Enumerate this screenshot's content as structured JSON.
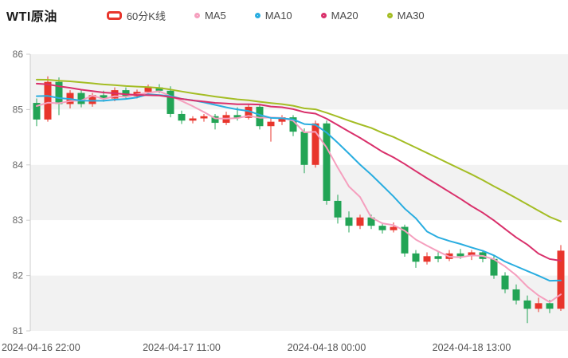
{
  "header": {
    "title": "WTI原油",
    "legend": [
      {
        "id": "kline",
        "label": "60分K线",
        "color": "#e8352c",
        "type": "kline"
      },
      {
        "id": "ma5",
        "label": "MA5",
        "color": "#f59fbe",
        "type": "line"
      },
      {
        "id": "ma10",
        "label": "MA10",
        "color": "#29ade0",
        "type": "line"
      },
      {
        "id": "ma20",
        "label": "MA20",
        "color": "#d9306b",
        "type": "line"
      },
      {
        "id": "ma30",
        "label": "MA30",
        "color": "#a4bd24",
        "type": "line"
      }
    ]
  },
  "chart_data": {
    "type": "candlestick",
    "title": "WTI原油",
    "interval_label": "60分K线",
    "ylim": [
      81,
      86
    ],
    "y_ticks": [
      86,
      85,
      84,
      83,
      82,
      81
    ],
    "x_tick_labels": [
      "2024-04-16 22:00",
      "2024-04-17 11:00",
      "2024-04-18 00:00",
      "2024-04-18 13:00"
    ],
    "x_tick_indices": [
      0,
      13,
      26,
      39
    ],
    "up_color": "#e8352c",
    "down_color": "#22a455",
    "band_colors": [
      "#f2f2f2",
      "#ffffff"
    ],
    "axis_color": "#cccccc",
    "tick_text_color": "#666666",
    "x_text_color": "#555555",
    "ma_series": [
      {
        "name": "MA5",
        "window": 5,
        "color": "#f59fbe"
      },
      {
        "name": "MA10",
        "window": 10,
        "color": "#29ade0"
      },
      {
        "name": "MA20",
        "window": 20,
        "color": "#d9306b"
      },
      {
        "name": "MA30",
        "window": 30,
        "color": "#a4bd24"
      }
    ],
    "seed_closes": [
      85.5,
      85.55,
      85.6,
      85.65,
      85.7,
      85.75,
      85.8,
      85.75,
      85.7,
      85.65,
      85.7,
      85.75,
      85.8,
      85.85,
      85.8,
      85.75,
      85.7,
      85.65,
      85.6,
      85.55,
      85.5,
      85.45,
      85.5,
      85.45,
      85.4,
      85.3,
      85.2,
      85.15,
      85.1,
      85.05
    ],
    "candles": [
      [
        85.12,
        85.2,
        84.7,
        84.82
      ],
      [
        84.82,
        85.6,
        84.78,
        85.5
      ],
      [
        85.5,
        85.58,
        84.9,
        85.1
      ],
      [
        85.1,
        85.35,
        85.02,
        85.3
      ],
      [
        85.3,
        85.36,
        85.04,
        85.1
      ],
      [
        85.1,
        85.3,
        85.05,
        85.26
      ],
      [
        85.26,
        85.34,
        85.14,
        85.2
      ],
      [
        85.2,
        85.4,
        85.15,
        85.35
      ],
      [
        85.35,
        85.4,
        85.18,
        85.24
      ],
      [
        85.24,
        85.36,
        85.2,
        85.32
      ],
      [
        85.32,
        85.45,
        85.26,
        85.4
      ],
      [
        85.4,
        85.46,
        85.3,
        85.34
      ],
      [
        85.34,
        85.42,
        84.86,
        84.92
      ],
      [
        84.92,
        84.98,
        84.74,
        84.8
      ],
      [
        84.8,
        84.88,
        84.75,
        84.84
      ],
      [
        84.84,
        84.92,
        84.78,
        84.88
      ],
      [
        84.88,
        84.92,
        84.64,
        84.76
      ],
      [
        84.76,
        84.96,
        84.72,
        84.9
      ],
      [
        84.9,
        85.04,
        84.8,
        84.85
      ],
      [
        84.85,
        85.1,
        84.82,
        85.05
      ],
      [
        85.05,
        85.08,
        84.64,
        84.7
      ],
      [
        84.7,
        84.84,
        84.42,
        84.78
      ],
      [
        84.78,
        84.9,
        84.72,
        84.86
      ],
      [
        84.86,
        84.9,
        84.52,
        84.6
      ],
      [
        84.6,
        84.66,
        83.85,
        84.0
      ],
      [
        84.0,
        84.8,
        83.95,
        84.75
      ],
      [
        84.75,
        84.8,
        83.28,
        83.35
      ],
      [
        83.35,
        83.46,
        82.94,
        83.05
      ],
      [
        83.05,
        83.16,
        82.78,
        82.9
      ],
      [
        82.9,
        83.1,
        82.84,
        83.05
      ],
      [
        83.05,
        83.1,
        82.84,
        82.9
      ],
      [
        82.9,
        82.96,
        82.76,
        82.82
      ],
      [
        82.82,
        82.96,
        82.78,
        82.88
      ],
      [
        82.88,
        82.92,
        82.34,
        82.4
      ],
      [
        82.4,
        82.46,
        82.14,
        82.25
      ],
      [
        82.25,
        82.42,
        82.2,
        82.35
      ],
      [
        82.35,
        82.42,
        82.24,
        82.3
      ],
      [
        82.3,
        82.46,
        82.26,
        82.4
      ],
      [
        82.4,
        82.48,
        82.3,
        82.35
      ],
      [
        82.35,
        82.46,
        82.28,
        82.42
      ],
      [
        82.42,
        82.46,
        82.24,
        82.3
      ],
      [
        82.3,
        82.36,
        81.94,
        82.0
      ],
      [
        82.0,
        82.06,
        81.68,
        81.75
      ],
      [
        81.75,
        81.84,
        81.48,
        81.55
      ],
      [
        81.55,
        81.64,
        81.14,
        81.4
      ],
      [
        81.4,
        81.6,
        81.34,
        81.5
      ],
      [
        81.5,
        81.56,
        81.32,
        81.4
      ],
      [
        81.4,
        82.55,
        81.36,
        82.45
      ]
    ]
  }
}
